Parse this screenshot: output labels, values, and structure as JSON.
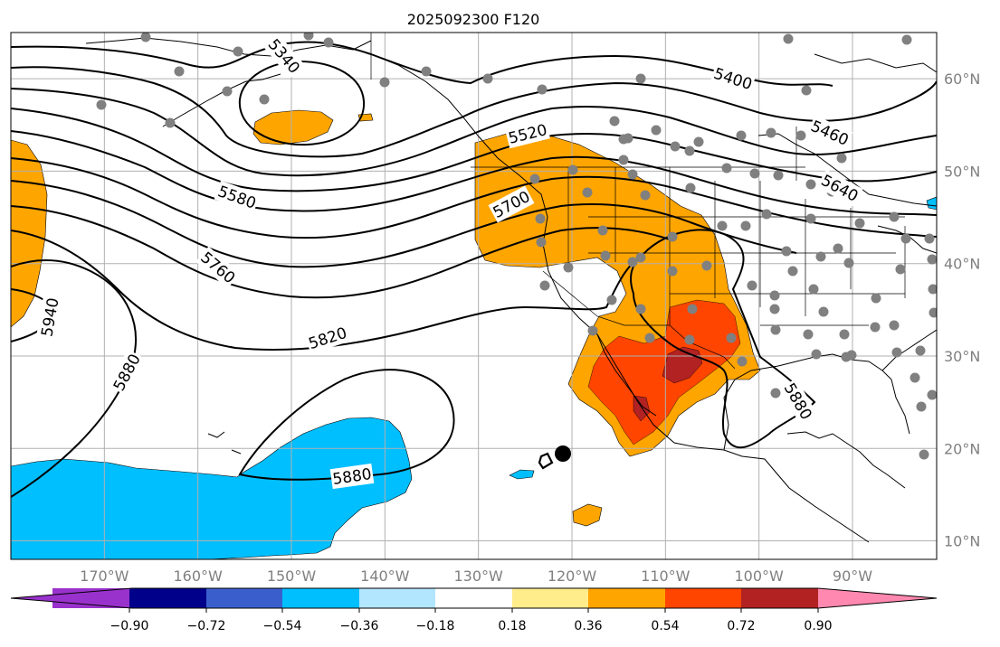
{
  "title": "2025092300 F120",
  "longitude_labels": [
    "170°W",
    "160°W",
    "150°W",
    "140°W",
    "130°W",
    "120°W",
    "110°W",
    "100°W",
    "90°W"
  ],
  "latitude_labels": [
    "60°N",
    "50°N",
    "40°N",
    "30°N",
    "20°N",
    "10°N"
  ],
  "contour_labels": [
    "5340",
    "5400",
    "5460",
    "5520",
    "5580",
    "5640",
    "5700",
    "5760",
    "5820",
    "5880",
    "5880",
    "5880",
    "5940"
  ],
  "colorbar": {
    "ticks": [
      "−0.90",
      "−0.72",
      "−0.54",
      "−0.36",
      "−0.18",
      "0.18",
      "0.36",
      "0.54",
      "0.72",
      "0.90"
    ],
    "colors": [
      "#9932cc",
      "#00008b",
      "#3a5fcd",
      "#00bfff",
      "#b2e6ff",
      "#ffffff",
      "#ffec8b",
      "#ffa500",
      "#ff4500",
      "#b22222",
      "#ff88b0"
    ]
  },
  "map": {
    "lon_range": [
      -180,
      -81
    ],
    "lat_range": [
      8,
      65
    ],
    "fill_colors": {
      "low": "#00bfff",
      "mid": "#ffa500",
      "high": "#ff4500",
      "top": "#b22222",
      "pale": "#b2e6ff"
    },
    "gridline_color": "#b0b0b0",
    "station_color": "#808080",
    "contour_color": "#000000"
  }
}
